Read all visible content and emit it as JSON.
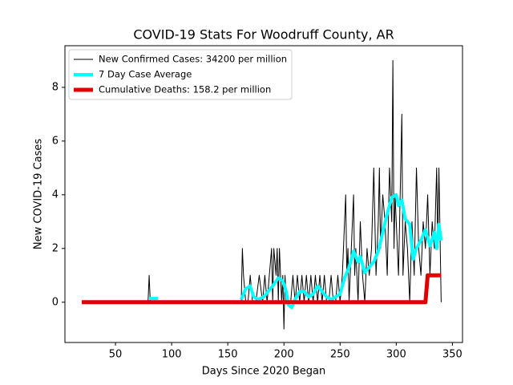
{
  "chart_data": {
    "type": "line",
    "title": "COVID-19 Stats For Woodruff County, AR",
    "xlabel": "Days Since 2020 Began",
    "ylabel": "New COVID-19 Cases",
    "xlim": [
      5,
      359
    ],
    "ylim": [
      -1.5,
      9.55
    ],
    "xticks": [
      50,
      100,
      150,
      200,
      250,
      300,
      350
    ],
    "yticks": [
      0,
      2,
      4,
      6,
      8
    ],
    "legend": "upper left",
    "series": [
      {
        "name": "New Confirmed Cases: 34200 per million",
        "color": "#000000",
        "width": 1,
        "x": [
          20,
          79,
          80,
          81,
          162,
          163,
          164,
          166,
          168,
          170,
          172,
          175,
          178,
          181,
          183,
          185,
          187,
          189,
          190,
          191,
          193,
          194,
          195,
          196,
          197,
          198,
          199,
          200,
          201,
          202,
          204,
          206,
          208,
          210,
          212,
          214,
          216,
          218,
          220,
          222,
          224,
          226,
          228,
          230,
          232,
          234,
          236,
          238,
          240,
          242,
          244,
          246,
          248,
          250,
          252,
          254,
          255,
          256,
          257,
          258,
          260,
          262,
          263,
          264,
          266,
          268,
          270,
          272,
          274,
          276,
          278,
          280,
          282,
          284,
          285,
          286,
          288,
          290,
          292,
          294,
          296,
          297,
          298,
          299,
          300,
          302,
          304,
          305,
          306,
          308,
          310,
          312,
          314,
          316,
          318,
          320,
          322,
          324,
          326,
          328,
          330,
          332,
          334,
          336,
          337,
          338,
          340
        ],
        "values": [
          0,
          0,
          1,
          0,
          0,
          2,
          1,
          0,
          0,
          1,
          0,
          0,
          1,
          0,
          1,
          0,
          1,
          2,
          0,
          2,
          1,
          2,
          0,
          2,
          1,
          0,
          1,
          -1,
          1,
          0,
          0,
          0,
          1,
          0,
          1,
          0,
          1,
          0,
          1,
          0,
          1,
          0,
          1,
          0,
          1,
          0,
          1,
          0,
          0,
          1,
          0,
          0,
          1,
          0,
          1,
          3,
          4,
          1,
          2,
          0,
          2,
          4,
          1,
          2,
          0,
          3,
          1,
          0,
          2,
          1,
          2,
          5,
          1,
          3,
          5,
          2,
          4,
          3,
          1,
          5,
          3,
          9,
          2,
          4,
          3,
          1,
          5,
          7,
          1,
          3,
          2,
          0,
          3,
          1,
          5,
          2,
          1,
          3,
          2,
          4,
          1,
          3,
          2,
          5,
          2,
          5,
          0
        ]
      },
      {
        "name": "7 Day Case Average",
        "color": "#00ffff",
        "width": 4,
        "x": [
          80,
          88,
          125,
          162,
          166,
          170,
          173,
          177,
          182,
          186,
          190,
          195,
          199,
          202,
          204,
          207,
          210,
          214,
          218,
          222,
          226,
          230,
          234,
          238,
          242,
          246,
          250,
          254,
          258,
          262,
          266,
          268,
          272,
          276,
          280,
          284,
          288,
          292,
          296,
          300,
          302,
          305,
          308,
          312,
          315,
          318,
          322,
          326,
          330,
          334,
          336,
          338,
          340
        ],
        "values": [
          0.14,
          0.14,
          null,
          0.1,
          0.5,
          0.6,
          0.2,
          0.1,
          0.2,
          0.4,
          0.6,
          0.9,
          0.8,
          0.4,
          -0.1,
          -0.2,
          0.1,
          0.4,
          0.4,
          0.2,
          0.3,
          0.6,
          0.4,
          0.2,
          0.1,
          0.2,
          0.3,
          0.9,
          1.3,
          1.9,
          1.5,
          1.7,
          1.1,
          1.3,
          1.5,
          1.9,
          2.6,
          3.3,
          3.9,
          4.0,
          3.6,
          3.8,
          3.1,
          2.9,
          1.6,
          2.0,
          2.3,
          2.7,
          2.1,
          2.6,
          2.0,
          2.9,
          2.3
        ]
      },
      {
        "name": "Cumulative Deaths: 158.2 per million",
        "color": "#e00000",
        "width": 5,
        "x": [
          20,
          326,
          328,
          340
        ],
        "values": [
          0,
          0,
          1,
          1
        ]
      }
    ]
  }
}
